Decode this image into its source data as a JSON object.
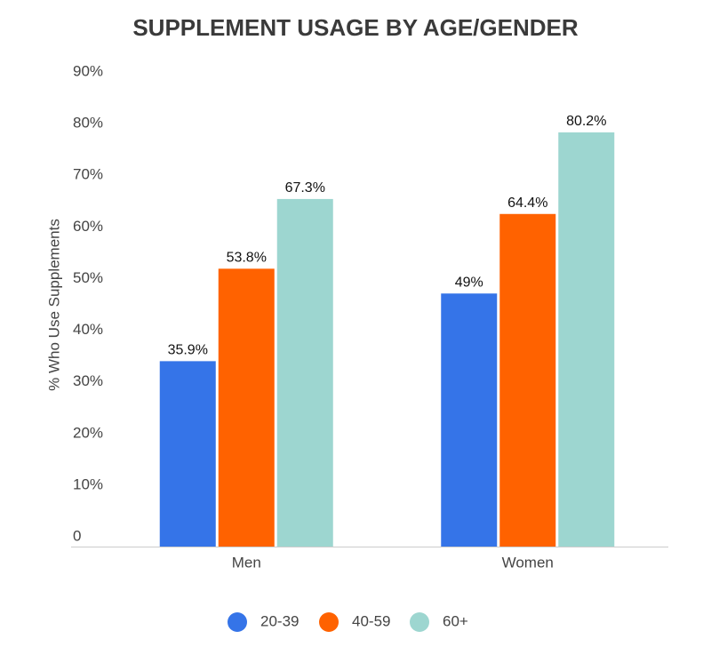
{
  "chart_data": {
    "type": "bar",
    "title": "SUPPLEMENT USAGE BY AGE/GENDER",
    "y_label": "% Who Use Supplements",
    "categories": [
      "Men",
      "Women"
    ],
    "series": [
      {
        "name": "20-39",
        "color": "#3574e8",
        "values": [
          35.9,
          49
        ],
        "value_labels": [
          "35.9%",
          "49%"
        ]
      },
      {
        "name": "40-59",
        "color": "#ff6200",
        "values": [
          53.8,
          64.4
        ],
        "value_labels": [
          "53.8%",
          "64.4%"
        ]
      },
      {
        "name": "60+",
        "color": "#9dd6d0",
        "values": [
          67.3,
          80.2
        ],
        "value_labels": [
          "67.3%",
          "80.2%"
        ]
      }
    ],
    "ylim": [
      0,
      90
    ],
    "yticks": [
      0,
      {
        "value": 10,
        "label": "10%"
      },
      {
        "value": 20,
        "label": "20%"
      },
      {
        "value": 30,
        "label": "30%"
      },
      {
        "value": 40,
        "label": "40%"
      },
      {
        "value": 50,
        "label": "50%"
      },
      {
        "value": 60,
        "label": "60%"
      },
      {
        "value": 70,
        "label": "70%"
      },
      {
        "value": 80,
        "label": "80%"
      },
      {
        "value": 90,
        "label": "90%"
      }
    ],
    "grid": false,
    "legend": "bottom"
  }
}
